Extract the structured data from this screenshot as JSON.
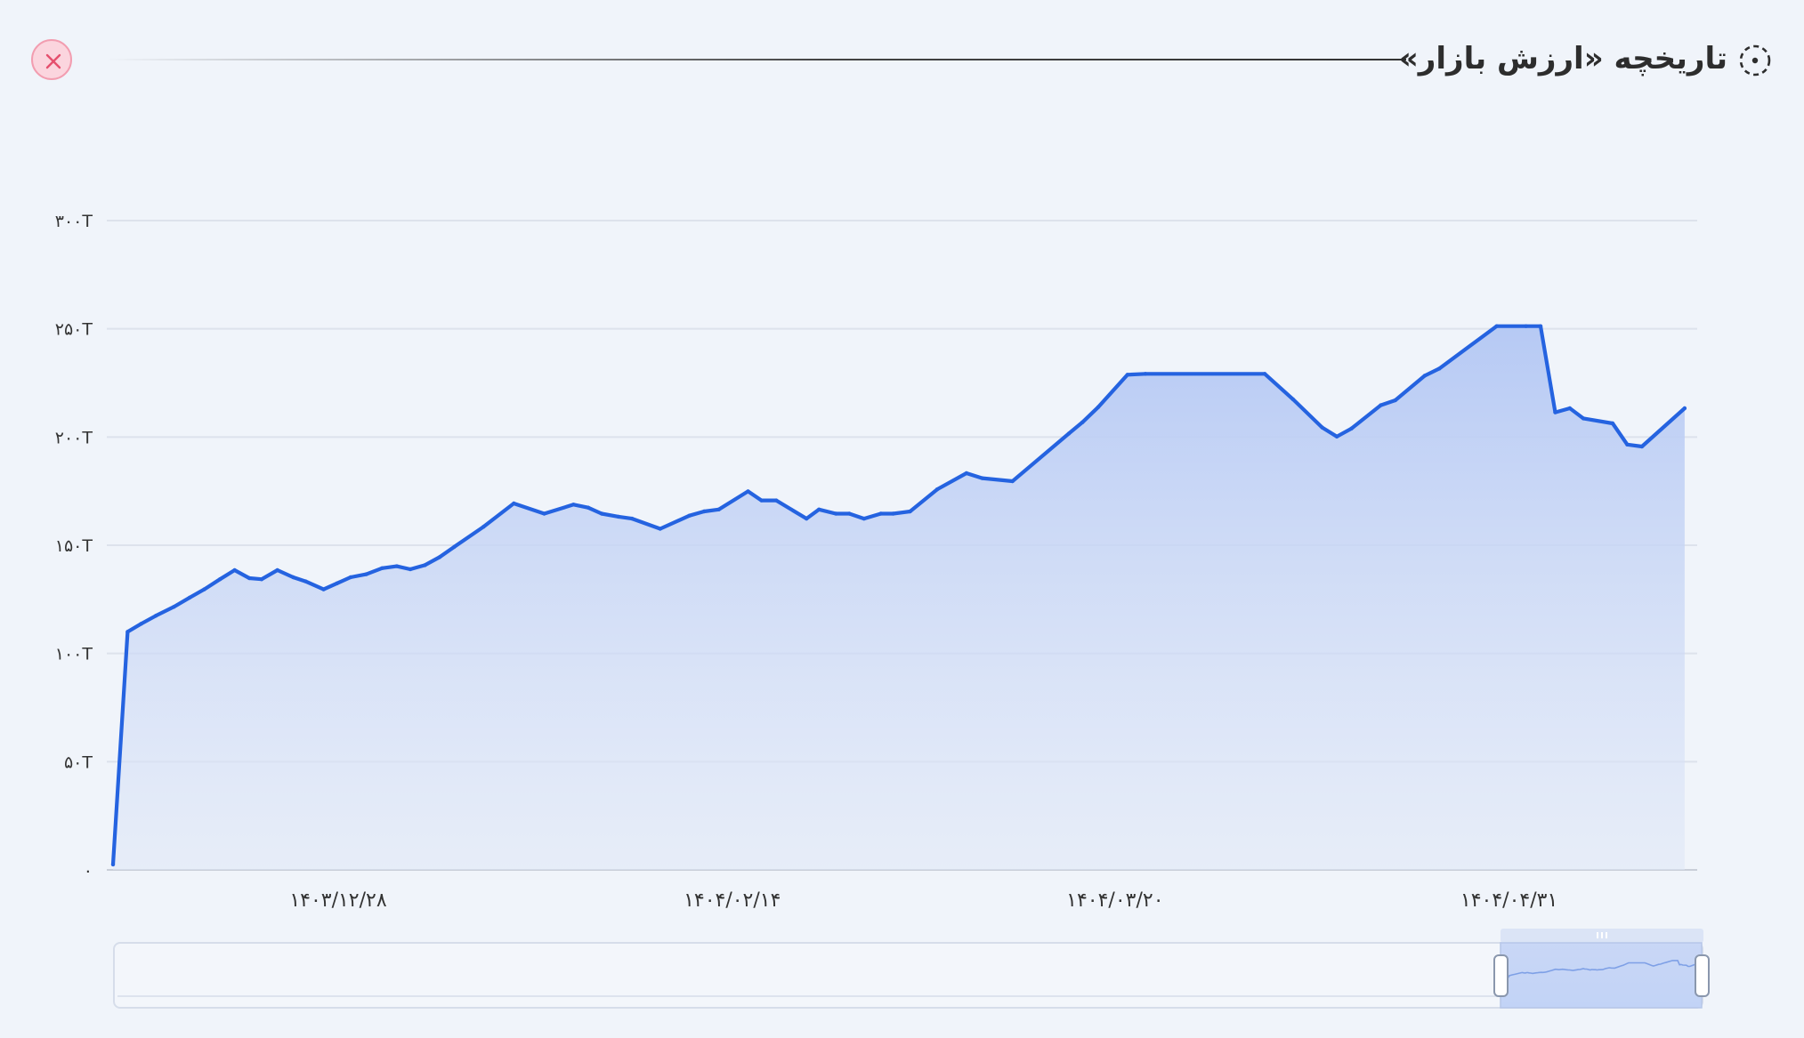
{
  "header": {
    "title": "تاریخچه «ارزش بازار»",
    "title_icon": "dashed-circle-icon",
    "close_icon": "close-icon"
  },
  "colors": {
    "line": "#2563e0",
    "fill": "#b9cbf3",
    "close_bg": "#fbd5de",
    "close_x": "#e5506e",
    "background": "#f0f4fa"
  },
  "chart_data": {
    "type": "area",
    "title": "تاریخچه «ارزش بازار»",
    "xlabel": "",
    "ylabel": "",
    "ylim": [
      0,
      300
    ],
    "yticks": [
      0,
      50,
      100,
      150,
      200,
      250,
      300
    ],
    "ytick_labels": [
      "۰",
      "۵۰T",
      "۱۰۰T",
      "۱۵۰T",
      "۲۰۰T",
      "۲۵۰T",
      "۳۰۰T"
    ],
    "xlim": [
      0,
      140
    ],
    "xticks": [
      20,
      55,
      89,
      124
    ],
    "xtick_labels": [
      "۱۴۰۳/۱۲/۲۸",
      "۱۴۰۴/۰۲/۱۴",
      "۱۴۰۴/۰۳/۲۰",
      "۱۴۰۴/۰۴/۳۱"
    ],
    "grid": true,
    "legend": "none",
    "series": [
      {
        "x": [
          0,
          1.3,
          2.5,
          3.8,
          5.4,
          6.8,
          8.1,
          9.5,
          10.8,
          12.1,
          13.2,
          14.6,
          16,
          17.1,
          18.7,
          19.9,
          21.1,
          22.5,
          23.9,
          25.2,
          26.4,
          27.7,
          29,
          30.3,
          32.9,
          35.6,
          38.3,
          40.9,
          42.2,
          43.4,
          44.9,
          46.1,
          48.6,
          51.2,
          52.5,
          53.8,
          56.4,
          57.6,
          58.9,
          61.6,
          62.7,
          64.2,
          65.4,
          66.7,
          68.2,
          69.3,
          70.8,
          73.2,
          75.8,
          77.2,
          79.9,
          84.9,
          86.1,
          87.5,
          90.1,
          91.7,
          102.3,
          104.8,
          107.4,
          108.7,
          110,
          112.6,
          113.9,
          116.5,
          117.8,
          122.9,
          125.5,
          126.8,
          128.1,
          129.4,
          130.6,
          133.2,
          134.5,
          135.8,
          139.6
        ],
        "y": [
          2.5,
          110,
          113.7,
          117.4,
          121.5,
          125.8,
          129.6,
          134.3,
          138.5,
          134.8,
          134.3,
          138.5,
          135.2,
          133.3,
          129.6,
          132.4,
          135.2,
          136.6,
          139.4,
          140.3,
          138.9,
          140.8,
          144.5,
          149.2,
          158.5,
          169.3,
          164.6,
          168.8,
          167.4,
          164.6,
          163.2,
          162.3,
          157.6,
          163.7,
          165.6,
          166.5,
          174.9,
          170.7,
          170.7,
          162.3,
          166.5,
          164.6,
          164.6,
          162.3,
          164.6,
          164.6,
          165.6,
          175.8,
          183.3,
          181,
          179.6,
          201.6,
          206.8,
          213.8,
          228.8,
          229.2,
          229.2,
          217.5,
          204.4,
          200.2,
          203.9,
          214.7,
          217,
          228.3,
          231.6,
          251.2,
          251.2,
          251.2,
          211.4,
          213.3,
          208.6,
          206.3,
          196.5,
          195.6,
          213.3
        ]
      }
    ]
  },
  "navigator": {
    "handle_icon": "grip-handle-icon",
    "range_start_fraction": 0.873,
    "range_end_fraction": 1.0
  }
}
